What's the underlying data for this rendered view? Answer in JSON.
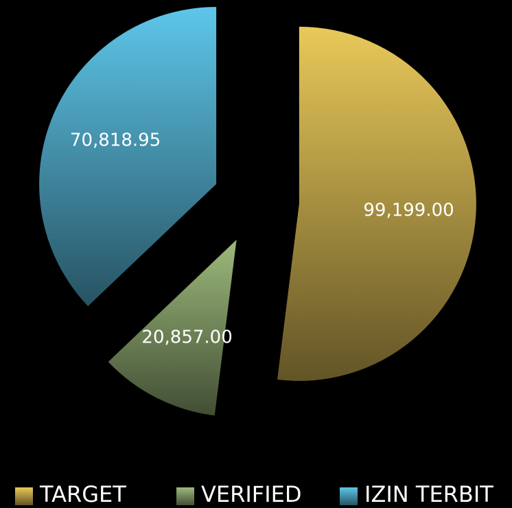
{
  "chart_data": {
    "type": "pie",
    "categories": [
      "TARGET",
      "VERIFIED",
      "IZIN TERBIT"
    ],
    "values": [
      99199,
      20857,
      70818.95
    ],
    "value_labels": [
      "99,199.00",
      "20,857.00",
      "70,818.95"
    ],
    "colors": [
      "#e9c95a",
      "#9dba7c",
      "#5ec6ea"
    ],
    "legend": "bottom"
  }
}
